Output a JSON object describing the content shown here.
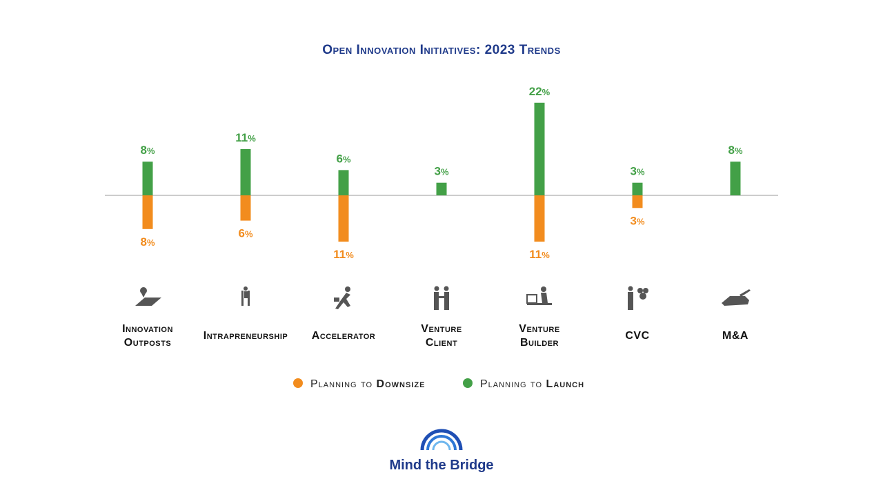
{
  "chart_data": {
    "type": "bar",
    "title": "Open Innovation Initiatives: 2023 Trends",
    "categories": [
      [
        "Innovation",
        "Outposts"
      ],
      [
        "Intrapreneurship"
      ],
      [
        "Accelerator"
      ],
      [
        "Venture",
        "Client"
      ],
      [
        "Venture",
        "Builder"
      ],
      [
        "CVC"
      ],
      [
        "M&A"
      ]
    ],
    "series": [
      {
        "name": "Planning to Launch",
        "color": "#43a047",
        "values": [
          8,
          11,
          6,
          3,
          22,
          3,
          8
        ],
        "direction": "up"
      },
      {
        "name": "Planning to Downsize",
        "color": "#f28c1e",
        "values": [
          8,
          6,
          11,
          null,
          11,
          3,
          null
        ],
        "direction": "down"
      }
    ],
    "unit": "%",
    "icons": [
      "map-pin-icon",
      "worker-ladder-icon",
      "runner-icon",
      "handshake-icon",
      "desk-builder-icon",
      "businessman-coins-icon",
      "signing-hand-icon"
    ],
    "legend": [
      {
        "prefix": "Planning to ",
        "bold": "Downsize",
        "color": "#f28c1e"
      },
      {
        "prefix": "Planning to ",
        "bold": "Launch",
        "color": "#43a047"
      }
    ]
  },
  "brand": {
    "name": "Mind the Bridge",
    "color": "#1f3a8a"
  }
}
